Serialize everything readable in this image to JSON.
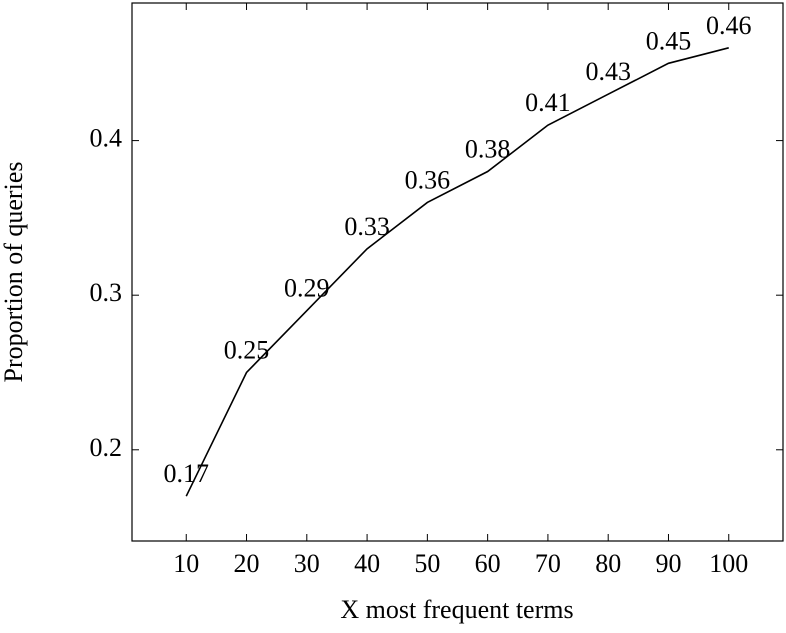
{
  "chart_data": {
    "type": "line",
    "x_label": "X most frequent terms",
    "y_label": "Proportion of queries",
    "x": [
      10,
      20,
      30,
      40,
      50,
      60,
      70,
      80,
      90,
      100
    ],
    "series": [
      {
        "color": "#000000",
        "values": [
          0.17,
          0.25,
          0.29,
          0.33,
          0.36,
          0.38,
          0.41,
          0.43,
          0.45,
          0.46
        ]
      }
    ],
    "xlim": [
      1,
      109
    ],
    "ylim": [
      0.141,
      0.489
    ],
    "xticks": [
      10,
      20,
      30,
      40,
      50,
      60,
      70,
      80,
      90,
      100
    ],
    "yticks": [
      0.2,
      0.3,
      0.4
    ],
    "data_labels": true
  }
}
